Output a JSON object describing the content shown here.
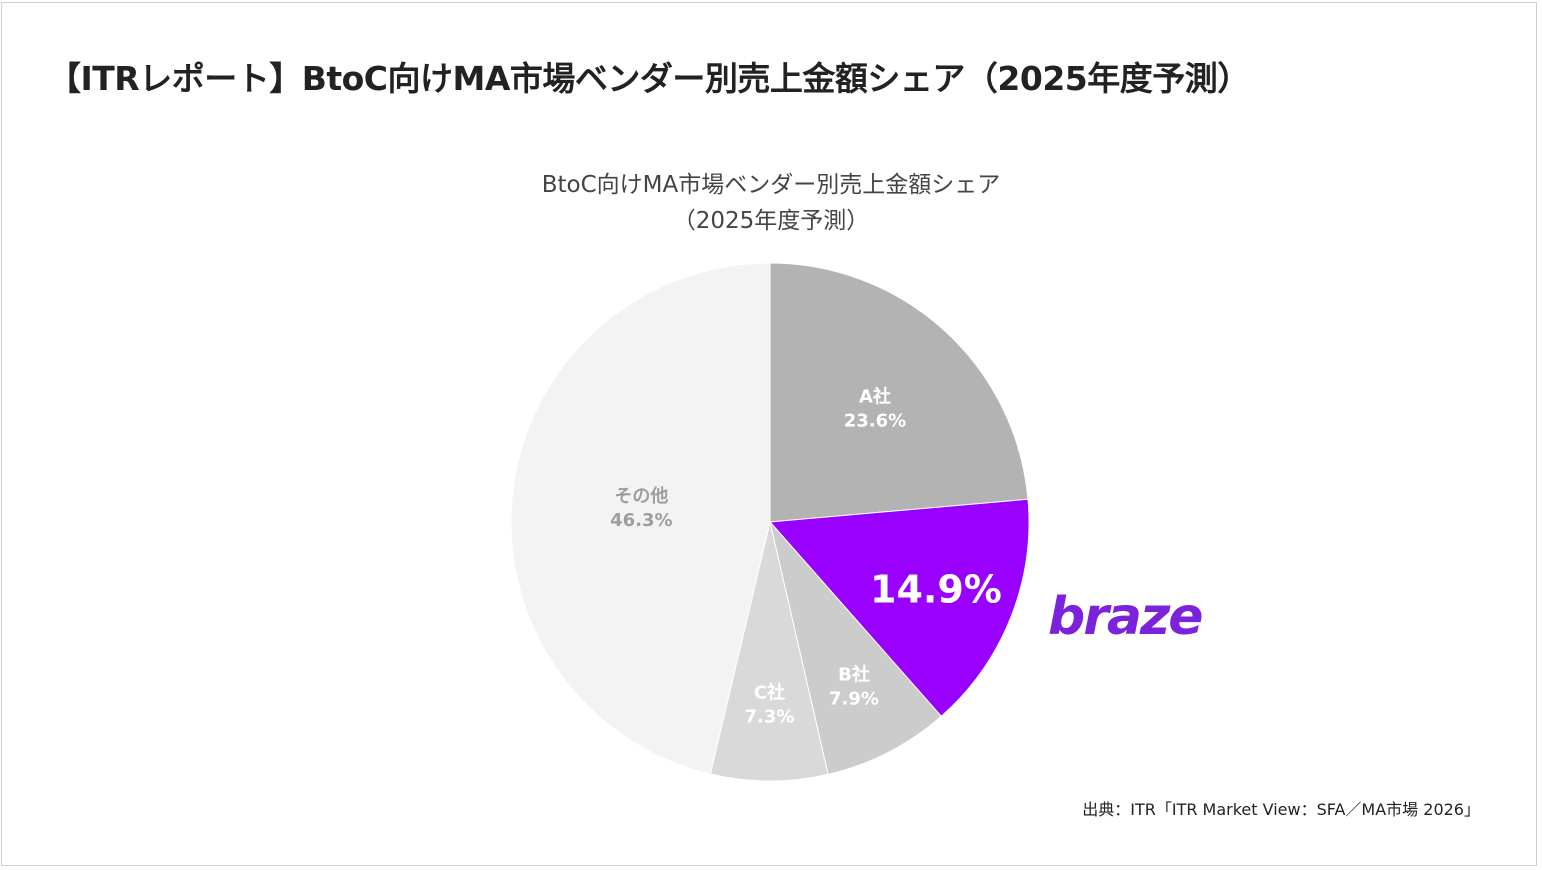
{
  "page_title": "【ITRレポート】BtoC向けMA市場ベンダー別売上金額シェア（2025年度予測）",
  "source": "出典：ITR「ITR Market View：SFA／MA市場 2026」",
  "logo": {
    "text": "braze",
    "color": "#7b22dd"
  },
  "chart_data": {
    "type": "pie",
    "title": [
      "BtoC向けMA市場ベンダー別売上金額シェア",
      "（2025年度予測）"
    ],
    "start": "top",
    "direction": "clockwise",
    "slices": [
      {
        "name": "A社",
        "value": 23.6,
        "label": "23.6%",
        "color": "#b3b3b3",
        "label_color": "#ffffff"
      },
      {
        "name": "",
        "value": 14.9,
        "label": "14.9%",
        "color": "#9900ff",
        "label_color": "#ffffff",
        "highlight": true
      },
      {
        "name": "B社",
        "value": 7.9,
        "label": "7.9%",
        "color": "#cccccc",
        "label_color": "#ffffff"
      },
      {
        "name": "C社",
        "value": 7.3,
        "label": "7.3%",
        "color": "#d9d9d9",
        "label_color": "#ffffff"
      },
      {
        "name": "その他",
        "value": 46.3,
        "label": "46.3%",
        "color": "#f3f3f3",
        "label_color": "#9e9e9e"
      }
    ]
  }
}
